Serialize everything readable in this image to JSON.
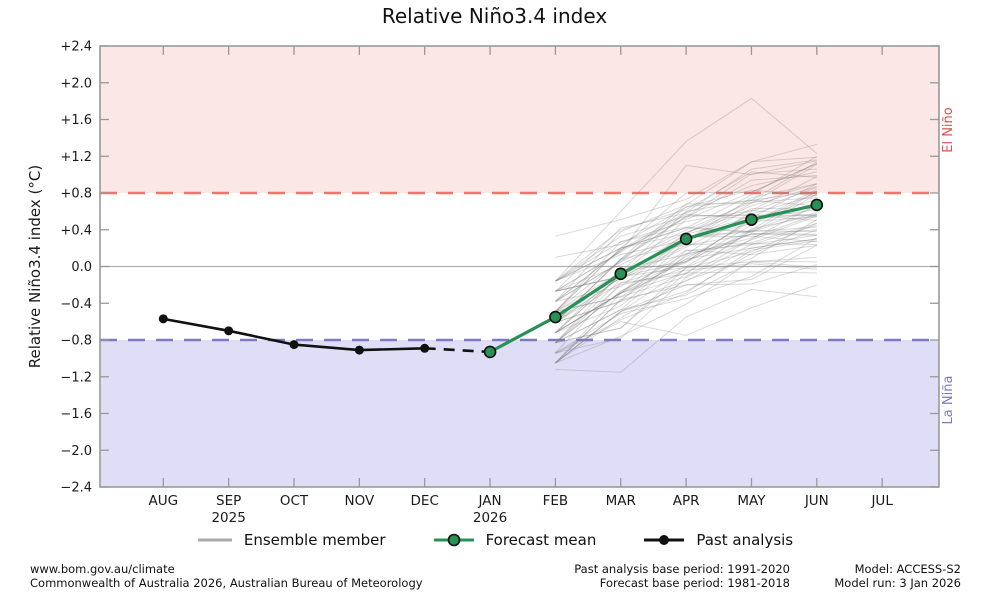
{
  "title": "Relative Niño3.4 index",
  "colors": {
    "el_nino_fill": "#fbe7e5",
    "la_nina_fill": "#e0def6",
    "el_nino_line": "#f4736d",
    "la_nina_line": "#7b7bc4",
    "el_nino_label": "#d9534f",
    "la_nina_label": "#7b7bc4",
    "zero_line": "#b0b0b0",
    "ensemble_line": "#808080",
    "ensemble_legend": "#aaaaaa",
    "forecast_line": "#289155",
    "past_line": "#111111",
    "axis": "#999999",
    "text": "#1a1a1a"
  },
  "chart_data": {
    "type": "line",
    "title": "Relative Niño3.4 index",
    "ylabel": "Relative Niño3.4 index (°C)",
    "months": [
      "AUG",
      "SEP",
      "OCT",
      "NOV",
      "DEC",
      "JAN",
      "FEB",
      "MAR",
      "APR",
      "MAY",
      "JUN",
      "JUL"
    ],
    "year_labels": [
      {
        "month_index": 1,
        "text": "2025"
      },
      {
        "month_index": 5,
        "text": "2026"
      }
    ],
    "ylim": [
      -2.4,
      2.4
    ],
    "ytick_labels": [
      "+2.4",
      "+2.0",
      "+1.6",
      "+1.2",
      "+0.8",
      "+0.4",
      "0.0",
      "−0.4",
      "−0.8",
      "−1.2",
      "−1.6",
      "−2.0",
      "−2.4"
    ],
    "ytick_values": [
      2.4,
      2.0,
      1.6,
      1.2,
      0.8,
      0.4,
      0.0,
      -0.4,
      -0.8,
      -1.2,
      -1.6,
      -2.0,
      -2.4
    ],
    "zero_line": 0.0,
    "thresholds": {
      "el_nino": 0.8,
      "la_nina": -0.8
    },
    "band_labels": {
      "el_nino": "El Niño",
      "la_nina": "La Niña"
    },
    "past_analysis": {
      "start_month_index": 0,
      "values": [
        -0.57,
        -0.7,
        -0.85,
        -0.91,
        -0.89
      ]
    },
    "past_to_forecast_link": {
      "from_month_index": 4,
      "from_value": -0.89,
      "to_month_index": 5,
      "to_value": -0.93
    },
    "forecast_mean": {
      "start_month_index": 5,
      "values": [
        -0.93,
        -0.55,
        -0.08,
        0.3,
        0.51,
        0.67
      ]
    },
    "ensemble_members": {
      "start_month_index": 6,
      "values": [
        [
          -0.94,
          -0.51,
          -0.35,
          -0.11,
          0.31
        ],
        [
          -0.83,
          -0.27,
          0.14,
          0.26,
          0.47
        ],
        [
          -0.16,
          0.6,
          1.36,
          1.83,
          1.23
        ],
        [
          -0.83,
          -0.47,
          0.13,
          0.31,
          0.57
        ],
        [
          -0.83,
          -0.27,
          0.08,
          0.2,
          0.3
        ],
        [
          -0.16,
          0.2,
          0.42,
          0.78,
          1.2
        ],
        [
          -0.49,
          -0.33,
          -0.11,
          0.3,
          0.67
        ],
        [
          -0.61,
          -0.38,
          0.28,
          0.63,
          0.63
        ],
        [
          -0.38,
          0.38,
          0.67,
          1.14,
          1.33
        ],
        [
          -0.72,
          -0.09,
          0.32,
          0.33,
          0.27
        ],
        [
          -0.49,
          0.2,
          0.42,
          0.37,
          0.79
        ],
        [
          -0.27,
          0.16,
          1.1,
          1.0,
          1.15
        ],
        [
          -0.49,
          0.27,
          0.49,
          0.61,
          0.55
        ],
        [
          -0.27,
          0.42,
          0.58,
          0.88,
          1.03
        ],
        [
          -1.05,
          -0.49,
          -0.27,
          0.14,
          0.4
        ],
        [
          -0.83,
          -0.67,
          -0.07,
          0.4,
          0.82
        ],
        [
          -0.16,
          0.4,
          0.62,
          1.03,
          0.97
        ],
        [
          -0.72,
          -0.29,
          0.31,
          0.38,
          0.59
        ],
        [
          -0.72,
          -0.29,
          -0.07,
          -0.06,
          -0.07
        ],
        [
          -0.27,
          -0.11,
          0.36,
          0.72,
          1.14
        ],
        [
          -0.16,
          0.13,
          0.29,
          0.47,
          0.84
        ],
        [
          -1.05,
          -0.36,
          0.11,
          0.35,
          0.34
        ],
        [
          -0.72,
          -0.43,
          0.17,
          0.24,
          0.34
        ],
        [
          -1.05,
          -0.49,
          -0.02,
          0.16,
          0.47
        ],
        [
          -1.05,
          -0.29,
          0.0,
          0.41,
          0.56
        ],
        [
          -0.61,
          -0.05,
          0.05,
          0.52,
          0.73
        ],
        [
          -0.49,
          -0.33,
          0.08,
          0.49,
          0.54
        ],
        [
          -0.83,
          -0.47,
          -0.31,
          0.05,
          0.1
        ],
        [
          -0.49,
          -0.13,
          0.28,
          0.75,
          0.9
        ],
        [
          -1.05,
          -0.36,
          -0.2,
          -0.14,
          0.23
        ],
        [
          -0.61,
          0.08,
          0.24,
          0.25,
          0.24
        ],
        [
          -0.27,
          0.16,
          0.57,
          0.52,
          0.57
        ],
        [
          -0.16,
          0.27,
          0.43,
          0.38,
          0.43
        ],
        [
          -0.27,
          -0.11,
          0.05,
          0.52,
          0.62
        ],
        [
          -0.16,
          0.33,
          0.55,
          0.56,
          0.55
        ],
        [
          -1.05,
          -0.56,
          -0.15,
          0.09,
          0.51
        ],
        [
          -0.38,
          0.05,
          0.4,
          0.7,
          0.75
        ],
        [
          -0.83,
          -0.07,
          0.28,
          0.69,
          1.11
        ],
        [
          -0.49,
          -0.06,
          0.6,
          0.72,
          0.66
        ],
        [
          -0.72,
          -0.03,
          0.13,
          0.6,
          0.86
        ],
        [
          -0.61,
          -0.18,
          0.04,
          0.45,
          0.82
        ],
        [
          -0.94,
          -0.78,
          -0.12,
          0.24,
          0.45
        ],
        [
          -0.38,
          0.18,
          0.59,
          1.06,
          1.16
        ],
        [
          -0.72,
          -0.29,
          0.06,
          0.36,
          0.35
        ],
        [
          -0.83,
          -0.14,
          0.21,
          0.57,
          0.78
        ],
        [
          -0.38,
          0.05,
          0.65,
          0.72,
          0.82
        ],
        [
          -0.72,
          -0.09,
          0.51,
          0.81,
          1.12
        ],
        [
          -0.16,
          0.2,
          0.36,
          0.66,
          0.87
        ],
        [
          -0.83,
          -0.2,
          -0.04,
          0.03,
          -0.03
        ],
        [
          -0.94,
          -0.18,
          -0.08,
          0.39,
          0.38
        ],
        [
          -0.61,
          -0.12,
          0.35,
          0.53,
          0.9
        ],
        [
          -0.49,
          0.07,
          0.54,
          1.01,
          1.06
        ],
        [
          -0.72,
          -0.29,
          0.18,
          0.13,
          0.23
        ],
        [
          -0.61,
          0.08,
          0.55,
          0.56,
          0.5
        ],
        [
          -0.61,
          -0.12,
          0.23,
          0.35,
          0.4
        ],
        [
          -0.38,
          0.18,
          0.53,
          0.94,
          0.99
        ],
        [
          -0.94,
          -0.58,
          -0.29,
          0.18,
          0.28
        ],
        [
          -0.38,
          -0.22,
          0.32,
          0.39,
          0.65
        ],
        [
          -1.05,
          -0.76,
          -0.41,
          0.06,
          0.05
        ],
        [
          -0.61,
          -0.38,
          -0.16,
          0.2,
          0.3
        ],
        [
          -0.27,
          0.02,
          0.37,
          0.61,
          0.98
        ],
        [
          -0.27,
          -0.11,
          -0.01,
          0.29,
          0.55
        ],
        [
          -1.05,
          -0.49,
          -0.2,
          -0.19,
          0.02
        ],
        [
          -0.49,
          0.2,
          0.8,
          0.81,
          1.12
        ],
        [
          -0.61,
          0.08,
          0.68,
          0.69,
          0.9
        ],
        [
          -0.83,
          -0.67,
          -0.01,
          0.05,
          -0.01
        ],
        [
          0.33,
          0.51,
          0.73,
          1.14,
          1.19
        ],
        [
          0.1,
          0.24,
          0.65,
          0.83,
          0.77
        ],
        [
          -1.12,
          -1.15,
          -0.55,
          -0.25,
          -0.33
        ],
        [
          -0.95,
          -0.6,
          -0.75,
          -0.45,
          -0.2
        ]
      ]
    }
  },
  "legend": {
    "items": [
      {
        "label": "Ensemble member"
      },
      {
        "label": "Forecast mean"
      },
      {
        "label": "Past analysis"
      }
    ]
  },
  "footer": {
    "left_line1": "www.bom.gov.au/climate",
    "left_line2": "Commonwealth of Australia 2026, Australian Bureau of Meteorology",
    "center_line1": "Past analysis base period: 1991-2020",
    "center_line2": "Forecast base period: 1981-2018",
    "right_line1": "Model: ACCESS-S2",
    "right_line2": "Model run: 3 Jan 2026"
  }
}
